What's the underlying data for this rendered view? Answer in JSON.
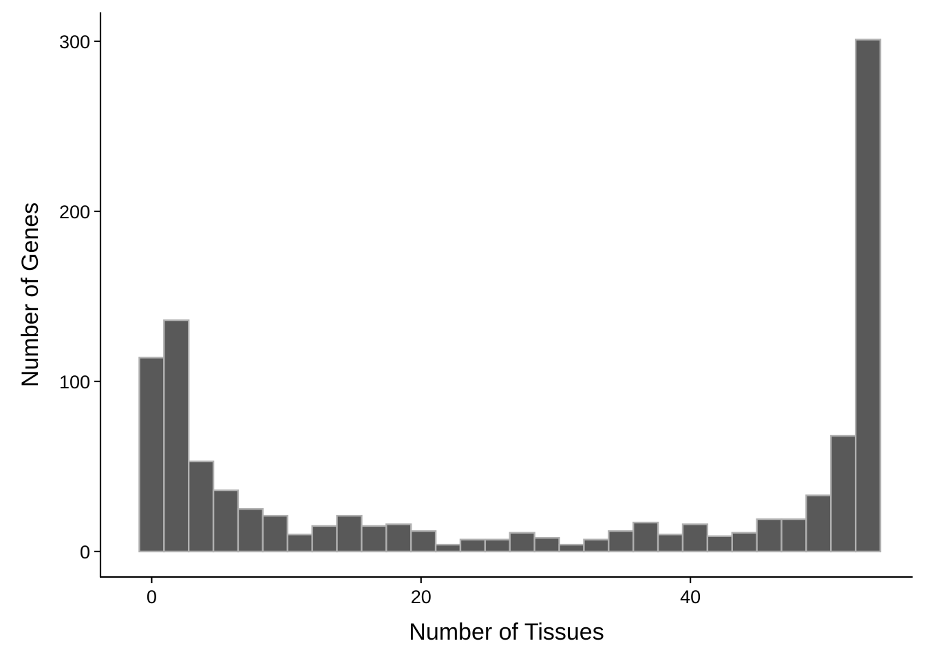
{
  "chart_data": {
    "type": "bar",
    "subtype": "histogram",
    "title": "",
    "xlabel": "Number of Tissues",
    "ylabel": "Number of Genes",
    "bin_width": 1.834,
    "bin_centers": [
      0.0,
      1.834,
      3.668,
      5.502,
      7.336,
      9.17,
      11.004,
      12.838,
      14.672,
      16.506,
      18.34,
      20.174,
      22.008,
      23.842,
      25.676,
      27.51,
      29.344,
      31.178,
      33.012,
      34.846,
      36.68,
      38.514,
      40.348,
      42.182,
      44.016,
      45.85,
      47.684,
      49.518,
      51.352,
      53.186
    ],
    "values": [
      114,
      136,
      53,
      36,
      25,
      21,
      10,
      15,
      21,
      15,
      16,
      12,
      4,
      7,
      7,
      11,
      8,
      4,
      7,
      12,
      17,
      10,
      16,
      9,
      11,
      19,
      19,
      33,
      68,
      301
    ],
    "xlim": [
      -3.8,
      56.5
    ],
    "ylim": [
      -15,
      317
    ],
    "x_ticks": [
      0,
      20,
      40
    ],
    "x_tick_labels": [
      "0",
      "20",
      "40"
    ],
    "y_ticks": [
      0,
      100,
      200,
      300
    ],
    "y_tick_labels": [
      "0",
      "100",
      "200",
      "300"
    ],
    "grid": false,
    "legend": "none",
    "colors": {
      "bar_fill": "#595959",
      "bar_outline": "#b0b0b0",
      "axis": "#000000"
    }
  }
}
